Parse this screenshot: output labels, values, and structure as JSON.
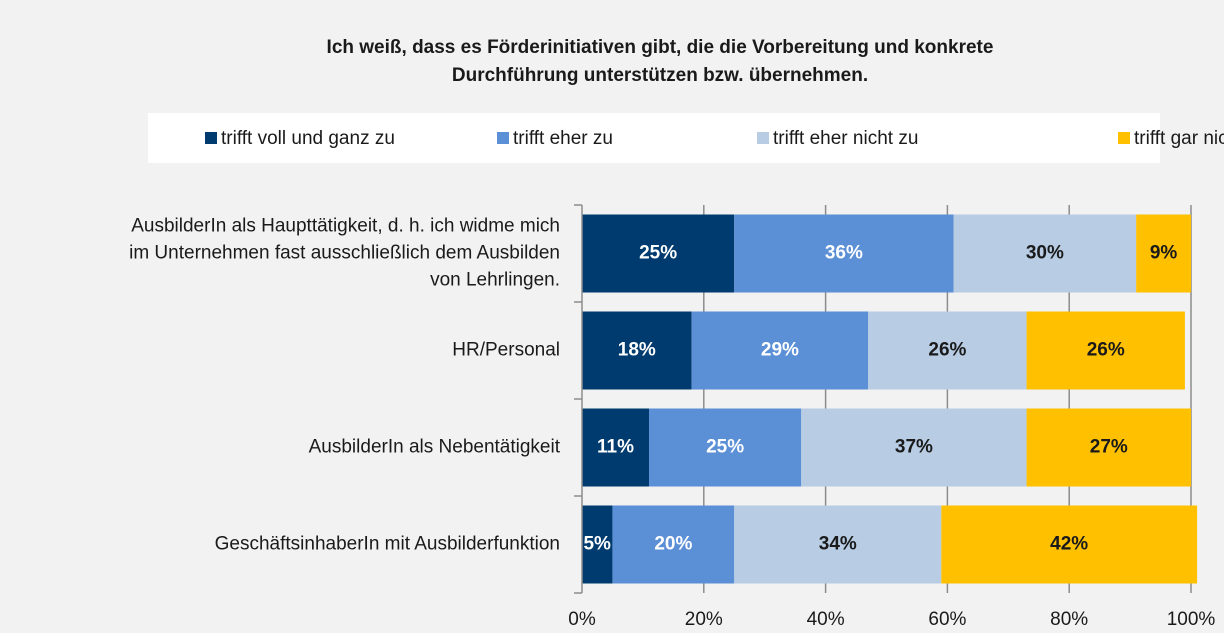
{
  "chart_data": {
    "type": "stacked-barh",
    "title": "Ich weiß, dass es Förderinitiativen gibt, die die Vorbereitung und konkrete\nDurchführung unterstützen bzw. übernehmen.",
    "categories": [
      "AusbilderIn als Haupttätigkeit, d. h. ich widme mich\nim Unternehmen fast ausschließlich dem Ausbilden\nvon Lehrlingen.",
      "HR/Personal",
      "AusbilderIn als Nebentätigkeit",
      "GeschäftsinhaberIn mit Ausbilderfunktion"
    ],
    "series": [
      {
        "name": "trifft voll und ganz zu",
        "color": "#003b6f",
        "label_color": "#ffffff",
        "values": [
          25,
          18,
          11,
          5
        ],
        "value_labels": [
          "25%",
          "18%",
          "11%",
          "5%"
        ]
      },
      {
        "name": "trifft eher zu",
        "color": "#5b8fd6",
        "label_color": "#ffffff",
        "values": [
          36,
          29,
          25,
          20
        ],
        "value_labels": [
          "36%",
          "29%",
          "25%",
          "20%"
        ]
      },
      {
        "name": "trifft eher nicht zu",
        "color": "#b8cce4",
        "label_color": "#1a1a1a",
        "values": [
          30,
          26,
          37,
          34
        ],
        "value_labels": [
          "30%",
          "26%",
          "37%",
          "34%"
        ]
      },
      {
        "name": "trifft gar nicht zu",
        "color": "#ffc000",
        "label_color": "#1a1a1a",
        "values": [
          9,
          26,
          27,
          42
        ],
        "value_labels": [
          "9%",
          "26%",
          "27%",
          "42%"
        ]
      }
    ],
    "xlim": [
      0,
      100
    ],
    "xticks": [
      {
        "value": 0,
        "label": "0%"
      },
      {
        "value": 20,
        "label": "20%"
      },
      {
        "value": 40,
        "label": "40%"
      },
      {
        "value": 60,
        "label": "60%"
      },
      {
        "value": 80,
        "label": "80%"
      },
      {
        "value": 100,
        "label": "100%"
      }
    ],
    "grid": true,
    "legend": "top"
  }
}
